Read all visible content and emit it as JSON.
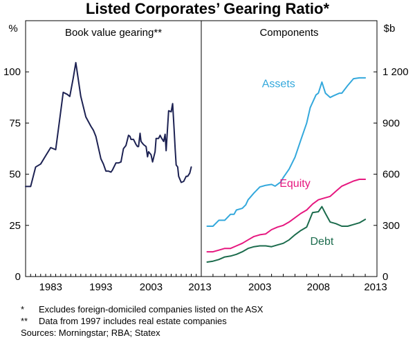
{
  "chart_data": {
    "type": "line",
    "title": "Listed Corporates’ Gearing Ratio*",
    "panels": [
      {
        "name": "left",
        "subtitle": "Book value gearing**",
        "yunit": "%",
        "ylim": [
          0,
          125
        ],
        "yticks": [
          0,
          25,
          50,
          75,
          100
        ],
        "xlim": [
          1978,
          2013
        ],
        "xticks": [
          1983,
          1993,
          2003,
          2013
        ],
        "series": [
          {
            "name": "Book value gearing",
            "color": "#1c2152",
            "x": [
              1978.0,
              1979.0,
              1980.0,
              1981.0,
              1982.0,
              1983.0,
              1984.0,
              1984.7,
              1985.5,
              1986.3,
              1986.8,
              1987.5,
              1988.0,
              1989.0,
              1990.0,
              1991.0,
              1991.5,
              1992.0,
              1993.0,
              1993.5,
              1994.0,
              1994.5,
              1995.0,
              1995.3,
              1996.0,
              1996.5,
              1997.0,
              1997.5,
              1998.0,
              1998.5,
              1998.8,
              1999.0,
              1999.5,
              2000.0,
              2000.3,
              2000.5,
              2000.8,
              2001.0,
              2001.5,
              2002.0,
              2002.3,
              2002.5,
              2003.0,
              2003.3,
              2003.8,
              2004.0,
              2004.5,
              2004.8,
              2005.0,
              2005.5,
              2005.8,
              2006.0,
              2006.5,
              2007.0,
              2007.3,
              2007.6,
              2007.8,
              2008.0,
              2008.3,
              2008.5,
              2009.0,
              2009.5,
              2010.0,
              2010.3,
              2010.7,
              2011.0
            ],
            "values": [
              44,
              44,
              53.5,
              55,
              59,
              63,
              62,
              75,
              90,
              89,
              88,
              97,
              104.5,
              88,
              78,
              73.5,
              71.5,
              68.5,
              57.5,
              55,
              51.5,
              51.5,
              51,
              52,
              55.5,
              55.5,
              56,
              62.5,
              64,
              69,
              68.5,
              67,
              67,
              64.5,
              63.5,
              63.5,
              70,
              66,
              64.5,
              63.5,
              58.5,
              61,
              59.5,
              56,
              61,
              67.5,
              67.5,
              69,
              68,
              66,
              69.5,
              61.5,
              81,
              80.5,
              84.5,
              71.5,
              62,
              54.5,
              53.5,
              49,
              46,
              46.5,
              49,
              49,
              50.5,
              53.5
            ]
          }
        ]
      },
      {
        "name": "right",
        "subtitle": "Components",
        "yunit": "$b",
        "ylim": [
          0,
          1500
        ],
        "yticks": [
          0,
          300,
          600,
          900,
          1200
        ],
        "xlim": [
          1998,
          2013
        ],
        "xticks": [
          2003,
          2008,
          2013
        ],
        "series": [
          {
            "name": "Assets",
            "label_x": 2004.6,
            "label_y": 1110,
            "color": "#33a8dc",
            "x": [
              1998.5,
              1999.0,
              1999.5,
              2000.0,
              2000.5,
              2000.8,
              2001.0,
              2001.5,
              2001.8,
              2002.0,
              2002.5,
              2003.0,
              2003.5,
              2004.0,
              2004.3,
              2004.8,
              2005.0,
              2005.5,
              2006.0,
              2006.5,
              2007.0,
              2007.3,
              2007.8,
              2008.0,
              2008.3,
              2008.6,
              2009.0,
              2009.3,
              2009.8,
              2010.0,
              2010.5,
              2011.0,
              2011.5,
              2012.0
            ],
            "values": [
              295,
              295,
              330,
              330,
              365,
              365,
              390,
              400,
              420,
              450,
              490,
              525,
              535,
              540,
              530,
              555,
              580,
              630,
              700,
              800,
              900,
              990,
              1065,
              1075,
              1140,
              1075,
              1050,
              1060,
              1075,
              1075,
              1120,
              1160,
              1165,
              1165
            ]
          },
          {
            "name": "Equity",
            "label_x": 2006.0,
            "label_y": 525,
            "color": "#e6177f",
            "x": [
              1998.5,
              1999.0,
              1999.5,
              2000.0,
              2000.5,
              2001.0,
              2001.5,
              2002.0,
              2002.5,
              2003.0,
              2003.5,
              2004.0,
              2004.5,
              2005.0,
              2005.5,
              2006.0,
              2006.5,
              2007.0,
              2007.5,
              2008.0,
              2008.5,
              2009.0,
              2009.5,
              2010.0,
              2010.5,
              2011.0,
              2011.5,
              2012.0
            ],
            "values": [
              145,
              145,
              155,
              165,
              165,
              180,
              195,
              215,
              235,
              245,
              250,
              275,
              290,
              300,
              320,
              345,
              370,
              390,
              425,
              450,
              460,
              470,
              500,
              530,
              545,
              560,
              570,
              570
            ]
          },
          {
            "name": "Debt",
            "label_x": 2008.3,
            "label_y": 185,
            "color": "#1b6b4c",
            "x": [
              1998.5,
              1999.0,
              1999.5,
              2000.0,
              2000.5,
              2001.0,
              2001.5,
              2002.0,
              2002.5,
              2003.0,
              2003.5,
              2004.0,
              2004.5,
              2005.0,
              2005.5,
              2006.0,
              2006.5,
              2007.0,
              2007.5,
              2008.0,
              2008.3,
              2008.6,
              2009.0,
              2009.5,
              2010.0,
              2010.5,
              2011.0,
              2011.5,
              2012.0
            ],
            "values": [
              85,
              90,
              100,
              115,
              120,
              130,
              145,
              165,
              175,
              180,
              180,
              175,
              185,
              195,
              215,
              245,
              270,
              290,
              375,
              380,
              410,
              370,
              320,
              310,
              295,
              295,
              305,
              315,
              335
            ]
          }
        ]
      }
    ]
  },
  "footnotes": [
    {
      "mark": "*",
      "text": "Excludes foreign-domiciled companies listed on the ASX"
    },
    {
      "mark": "**",
      "text": "Data from 1997 includes real estate companies"
    }
  ],
  "sources": "Sources: Morningstar; RBA; Statex"
}
